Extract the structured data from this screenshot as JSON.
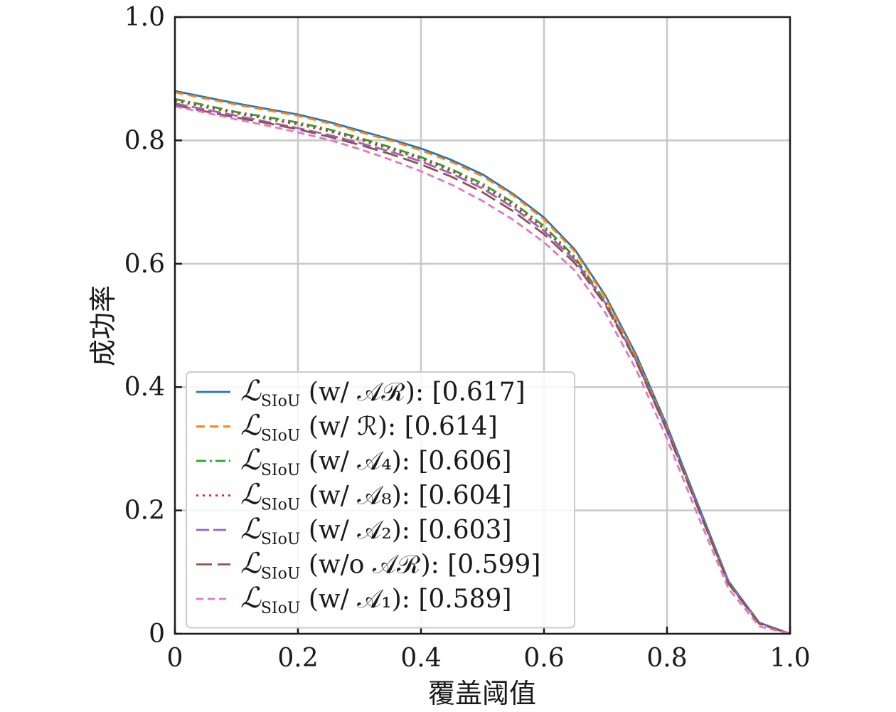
{
  "chart_data": {
    "type": "line",
    "title": "",
    "xlabel": "覆盖阈值",
    "ylabel": "成功率",
    "xlim": [
      0,
      1.0
    ],
    "ylim": [
      0,
      1.0
    ],
    "xticks": [
      "0",
      "0.2",
      "0.4",
      "0.6",
      "0.8",
      "1.0"
    ],
    "yticks": [
      "0",
      "0.2",
      "0.4",
      "0.6",
      "0.8",
      "1.0"
    ],
    "grid": true,
    "legend_position": "lower-left",
    "x": [
      0,
      0.05,
      0.1,
      0.15,
      0.2,
      0.25,
      0.3,
      0.35,
      0.4,
      0.45,
      0.5,
      0.55,
      0.6,
      0.65,
      0.7,
      0.75,
      0.8,
      0.85,
      0.9,
      0.95,
      1.0
    ],
    "series": [
      {
        "name": "ℒSIoU (w/ 𝒜ℛ): [0.617]",
        "legend_main": "ℒ",
        "legend_sub": "SIoU",
        "legend_text": " (w/ 𝒜ℛ): [0.617]",
        "color": "#1f77b4",
        "dash": "solid",
        "values": [
          0.88,
          0.87,
          0.86,
          0.851,
          0.842,
          0.83,
          0.816,
          0.802,
          0.787,
          0.768,
          0.745,
          0.713,
          0.675,
          0.623,
          0.548,
          0.452,
          0.337,
          0.21,
          0.085,
          0.018,
          0.0
        ]
      },
      {
        "name": "ℒSIoU (w/ ℛ): [0.614]",
        "legend_main": "ℒ",
        "legend_sub": "SIoU",
        "legend_text": " (w/ ℛ): [0.614]",
        "color": "#ff7f0e",
        "dash": "12,7",
        "values": [
          0.878,
          0.868,
          0.858,
          0.849,
          0.84,
          0.828,
          0.814,
          0.8,
          0.784,
          0.765,
          0.742,
          0.711,
          0.672,
          0.62,
          0.545,
          0.448,
          0.333,
          0.206,
          0.082,
          0.017,
          0.0
        ]
      },
      {
        "name": "ℒSIoU (w/ 𝒜4): [0.606]",
        "legend_main": "ℒ",
        "legend_sub": "SIoU",
        "legend_text": " (w/ 𝒜₄): [0.606]",
        "color": "#2ca02c",
        "dash": "14,5,3,5",
        "values": [
          0.867,
          0.857,
          0.846,
          0.838,
          0.829,
          0.818,
          0.804,
          0.789,
          0.773,
          0.753,
          0.73,
          0.699,
          0.661,
          0.611,
          0.538,
          0.443,
          0.33,
          0.205,
          0.082,
          0.017,
          0.0
        ]
      },
      {
        "name": "ℒSIoU (w/ 𝒜8): [0.604]",
        "legend_main": "ℒ",
        "legend_sub": "SIoU",
        "legend_text": " (w/ 𝒜₈): [0.604]",
        "color": "#d62728",
        "dash": "3,6",
        "values": [
          0.864,
          0.854,
          0.844,
          0.835,
          0.826,
          0.815,
          0.801,
          0.786,
          0.77,
          0.75,
          0.726,
          0.695,
          0.657,
          0.608,
          0.536,
          0.442,
          0.33,
          0.205,
          0.082,
          0.017,
          0.0
        ]
      },
      {
        "name": "ℒSIoU (w/ 𝒜2): [0.603]",
        "legend_main": "ℒ",
        "legend_sub": "SIoU",
        "legend_text": " (w/ 𝒜₂): [0.603]",
        "color": "#9467bd",
        "dash": "18,6",
        "values": [
          0.86,
          0.85,
          0.84,
          0.83,
          0.82,
          0.809,
          0.796,
          0.782,
          0.766,
          0.746,
          0.722,
          0.691,
          0.653,
          0.606,
          0.536,
          0.443,
          0.331,
          0.206,
          0.083,
          0.017,
          0.0
        ]
      },
      {
        "name": "ℒSIoU (w/o 𝒜ℛ): [0.599]",
        "legend_main": "ℒ",
        "legend_sub": "SIoU",
        "legend_text": " (w/o 𝒜ℛ): [0.599]",
        "color": "#8c564b",
        "dash": "22,8",
        "values": [
          0.857,
          0.847,
          0.837,
          0.828,
          0.818,
          0.806,
          0.793,
          0.778,
          0.761,
          0.741,
          0.716,
          0.685,
          0.648,
          0.601,
          0.533,
          0.441,
          0.329,
          0.204,
          0.081,
          0.016,
          0.0
        ]
      },
      {
        "name": "ℒSIoU (w/ 𝒜1): [0.589]",
        "legend_main": "ℒ",
        "legend_sub": "SIoU",
        "legend_text": " (w/ 𝒜₁): [0.589]",
        "color": "#e377c2",
        "dash": "10,6",
        "values": [
          0.855,
          0.845,
          0.834,
          0.824,
          0.813,
          0.801,
          0.786,
          0.769,
          0.75,
          0.728,
          0.702,
          0.671,
          0.635,
          0.589,
          0.52,
          0.428,
          0.316,
          0.192,
          0.073,
          0.012,
          0.0
        ]
      }
    ]
  }
}
